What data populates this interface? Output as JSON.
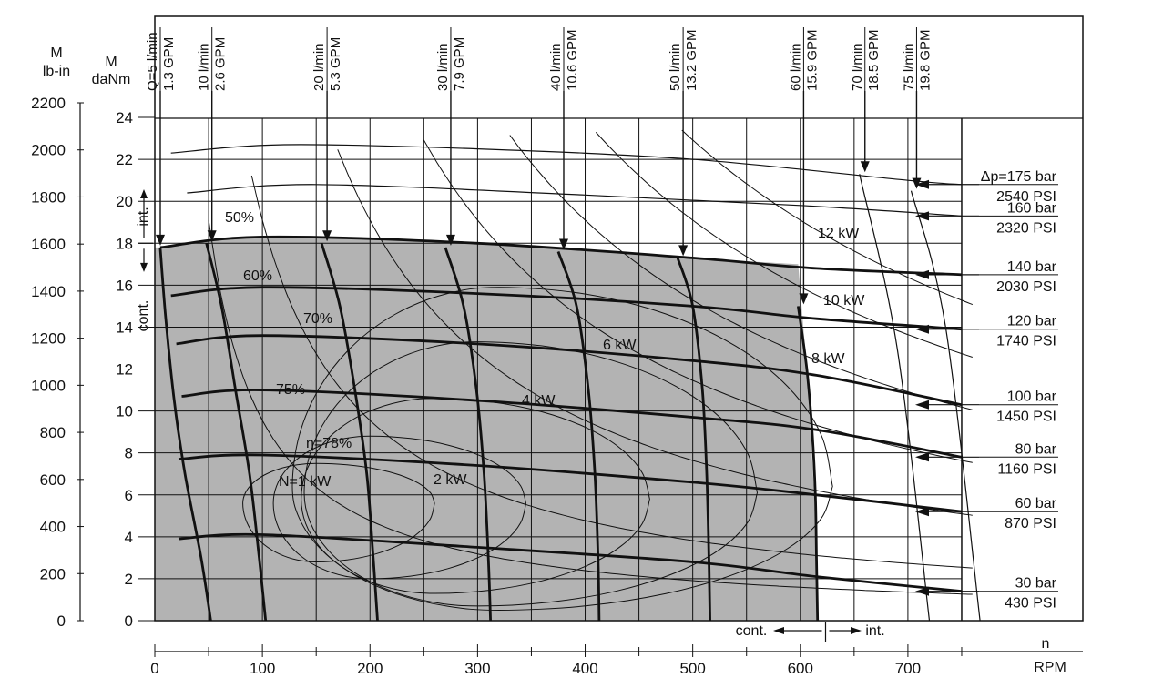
{
  "chart_data": {
    "type": "line",
    "x_axis": {
      "label": "n",
      "unit": "RPM",
      "range": [
        0,
        750
      ],
      "ticks": [
        0,
        100,
        200,
        300,
        400,
        500,
        600,
        700
      ],
      "minor_ticks": [
        50,
        150,
        250,
        350,
        450,
        550,
        650,
        750
      ]
    },
    "y_axis_torque_daNm": {
      "label": "M",
      "unit": "daNm",
      "range": [
        0,
        24
      ],
      "ticks": [
        0,
        2,
        4,
        6,
        8,
        10,
        12,
        14,
        16,
        18,
        20,
        22,
        24
      ]
    },
    "y_axis_torque_lbin": {
      "label": "M",
      "unit": "lb-in",
      "range": [
        0,
        2200
      ],
      "ticks": [
        0,
        200,
        400,
        600,
        800,
        1000,
        1200,
        1400,
        1600,
        1800,
        2000,
        2200
      ]
    },
    "continuous_region": {
      "torque_limit_label": "cont.",
      "intermittent_torque_label": "int.",
      "speed_cont_label": "cont.",
      "speed_int_label": "int.",
      "max_cont_torque_daNm": 18,
      "max_cont_speed_rpm": 615
    },
    "flow_lines": [
      {
        "label_metric": "Q=5 l/min",
        "label_imperial": "1.3 GPM",
        "rpm": [
          5,
          10,
          18,
          28,
          43,
          52
        ],
        "torque": [
          17.8,
          14.5,
          10.5,
          7,
          3,
          0
        ]
      },
      {
        "label_metric": "10 l/min",
        "label_imperial": "2.6 GPM",
        "rpm": [
          48,
          62,
          75,
          88,
          97,
          103
        ],
        "torque": [
          18,
          15,
          11,
          7,
          3,
          0
        ]
      },
      {
        "label_metric": "20 l/min",
        "label_imperial": "5.3 GPM",
        "rpm": [
          155,
          172,
          186,
          197,
          203,
          207
        ],
        "torque": [
          18,
          15,
          11,
          7,
          3,
          0
        ]
      },
      {
        "label_metric": "30 l/min",
        "label_imperial": "7.9 GPM",
        "rpm": [
          270,
          287,
          299,
          306,
          310,
          312
        ],
        "torque": [
          17.8,
          15,
          11,
          7,
          3,
          0
        ]
      },
      {
        "label_metric": "40 l/min",
        "label_imperial": "10.6 GPM",
        "rpm": [
          375,
          392,
          403,
          409,
          412,
          413
        ],
        "torque": [
          17.6,
          15,
          11,
          7,
          3,
          0
        ]
      },
      {
        "label_metric": "50 l/min",
        "label_imperial": "13.2 GPM",
        "rpm": [
          486,
          500,
          509,
          513,
          515,
          516
        ],
        "torque": [
          17.3,
          15,
          11,
          7,
          3,
          0
        ]
      },
      {
        "label_metric": "60 l/min",
        "label_imperial": "15.9 GPM",
        "rpm": [
          598,
          606,
          611,
          614,
          615,
          616
        ],
        "torque": [
          15,
          12,
          9,
          6,
          3,
          0
        ]
      },
      {
        "label_metric": "70 l/min",
        "label_imperial": "18.5 GPM",
        "rpm": [
          655,
          690,
          720
        ],
        "torque": [
          21.3,
          13,
          0
        ]
      },
      {
        "label_metric": "75 l/min",
        "label_imperial": "19.8 GPM",
        "rpm": [
          703,
          735,
          767
        ],
        "torque": [
          20.5,
          14,
          0
        ]
      }
    ],
    "pressure_lines": [
      {
        "label_bar": "Δp=175 bar",
        "label_psi": "2540 PSI",
        "rpm": [
          15,
          120,
          300,
          500,
          700,
          750
        ],
        "torque": [
          22.3,
          22.7,
          22.5,
          22,
          21,
          20.8
        ]
      },
      {
        "label_bar": "160 bar",
        "label_psi": "2320 PSI",
        "rpm": [
          30,
          150,
          400,
          600,
          750
        ],
        "torque": [
          20.4,
          20.8,
          20.3,
          19.8,
          19.3
        ]
      },
      {
        "label_bar": "140 bar",
        "label_psi": "2030 PSI",
        "rpm": [
          5,
          100,
          300,
          500,
          615,
          750
        ],
        "torque": [
          17.8,
          18.3,
          18,
          17.3,
          16.8,
          16.5
        ]
      },
      {
        "label_bar": "120 bar",
        "label_psi": "1740 PSI",
        "rpm": [
          15,
          100,
          300,
          500,
          615,
          750
        ],
        "torque": [
          15.5,
          15.9,
          15.6,
          15,
          14.4,
          13.9
        ]
      },
      {
        "label_bar": "100 bar",
        "label_psi": "1450 PSI",
        "rpm": [
          20,
          100,
          300,
          500,
          615,
          750
        ],
        "torque": [
          13.2,
          13.6,
          13.2,
          12.4,
          11.7,
          10.3
        ]
      },
      {
        "label_bar": "80 bar",
        "label_psi": "1160 PSI",
        "rpm": [
          25,
          100,
          300,
          500,
          615,
          750
        ],
        "torque": [
          10.7,
          11,
          10.5,
          9.7,
          9.1,
          7.8
        ]
      },
      {
        "label_bar": "60 bar",
        "label_psi": "870 PSI",
        "rpm": [
          22,
          100,
          300,
          500,
          615,
          750
        ],
        "torque": [
          7.7,
          7.9,
          7.4,
          6.6,
          6,
          5.2
        ]
      },
      {
        "label_bar": "30 bar",
        "label_psi": "430 PSI",
        "rpm": [
          22,
          100,
          300,
          500,
          615,
          750
        ],
        "torque": [
          3.9,
          4.1,
          3.5,
          2.8,
          2.1,
          1.4
        ]
      }
    ],
    "efficiency_labels": [
      "50%",
      "60%",
      "70%",
      "75%",
      "η=78%"
    ],
    "power_labels": [
      "N=1 kW",
      "2 kW",
      "4 kW",
      "6 kW",
      "8 kW",
      "10 kW",
      "12 kW"
    ],
    "power_curves_kW": [
      1,
      2,
      4,
      6,
      8,
      10,
      12
    ],
    "grid": true
  },
  "colors": {
    "shaded_region": "#b3b3b3",
    "line": "#111111",
    "background": "#ffffff"
  }
}
